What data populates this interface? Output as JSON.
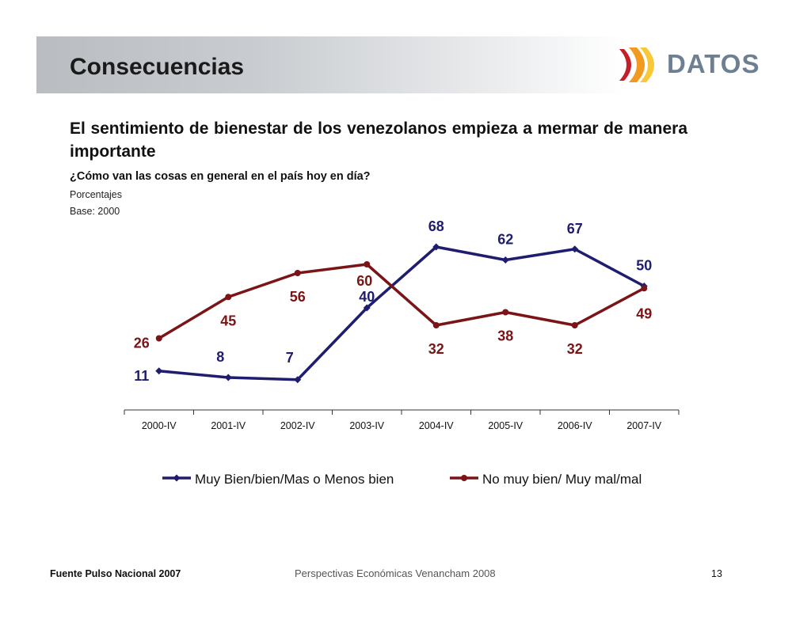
{
  "slide": {
    "title": "Consecuencias",
    "logo_text": "DATOS",
    "headline": "El sentimiento de bienestar de los venezolanos empieza a mermar de manera importante",
    "question": "¿Cómo van las cosas en general en el país hoy en día?",
    "note1": "Porcentajes",
    "note2": "Base: 2000"
  },
  "footer": {
    "source": "Fuente Pulso Nacional 2007",
    "center": "Perspectivas Económicas Venancham 2008",
    "page": "13"
  },
  "colors": {
    "series1": "#1f1d6e",
    "series2": "#7a1416",
    "logo_red": "#c41e2a",
    "logo_orange": "#f29a1f",
    "logo_yellow": "#f7c223"
  },
  "chart_data": {
    "type": "line",
    "categories": [
      "2000-IV",
      "2001-IV",
      "2002-IV",
      "2003-IV",
      "2004-IV",
      "2005-IV",
      "2006-IV",
      "2007-IV"
    ],
    "series": [
      {
        "name": "Muy Bien/bien/Mas o Menos bien",
        "values": [
          11,
          8,
          7,
          40,
          68,
          62,
          67,
          50
        ]
      },
      {
        "name": "No muy bien/ Muy mal/mal",
        "values": [
          26,
          45,
          56,
          60,
          32,
          38,
          32,
          49
        ]
      }
    ],
    "ylim": [
      0,
      80
    ],
    "grid": false,
    "legend": "bottom"
  }
}
